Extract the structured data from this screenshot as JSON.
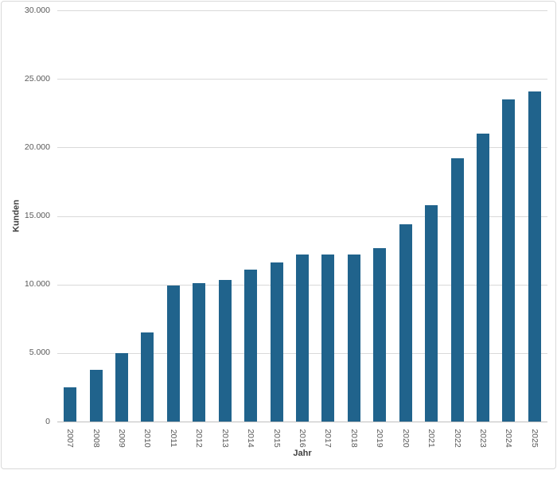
{
  "chart_data": {
    "type": "bar",
    "title": "",
    "xlabel": "Jahr",
    "ylabel": "Kunden",
    "categories": [
      "2007",
      "2008",
      "2009",
      "2010",
      "2011",
      "2012",
      "2013",
      "2014",
      "2015",
      "2016",
      "2017",
      "2018",
      "2019",
      "2020",
      "2021",
      "2022",
      "2023",
      "2024",
      "2025"
    ],
    "values": [
      2500,
      3800,
      5000,
      6500,
      9900,
      10100,
      10300,
      11100,
      11600,
      12200,
      12200,
      12200,
      12650,
      14400,
      15800,
      19200,
      21000,
      23500,
      24100
    ],
    "ylim": [
      0,
      30000
    ],
    "ytick_step": 5000,
    "ytick_labels": [
      "0",
      "5.000",
      "10.000",
      "15.000",
      "20.000",
      "25.000",
      "30.000"
    ],
    "grid": true,
    "legend_position": "none",
    "bar_color": "#20638c",
    "gridline_color": "#d9d9d9",
    "axis_line_color": "#bfbfbf",
    "tick_label_color": "#595959",
    "axis_title_color": "#404040",
    "background_color": "#ffffff",
    "border_color": "#d9d9d9"
  }
}
